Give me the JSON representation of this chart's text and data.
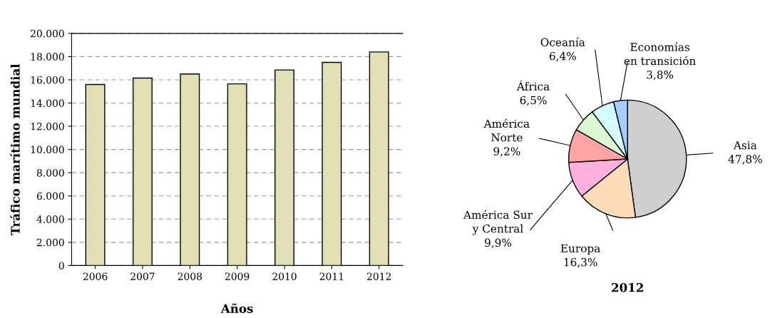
{
  "chart_data": [
    {
      "type": "bar",
      "xlabel": "Años",
      "ylabel": "Tráfico marítimo mundial",
      "categories": [
        "2006",
        "2007",
        "2008",
        "2009",
        "2010",
        "2011",
        "2012"
      ],
      "values": [
        15600,
        16150,
        16500,
        15650,
        16850,
        17500,
        18400
      ],
      "color": "#e0e0b4",
      "ylim": [
        0,
        20000
      ],
      "yticks": [
        0,
        {
          "value": 2000,
          "label": "2.000"
        },
        {
          "value": 4000,
          "label": "4.000"
        },
        {
          "value": 6000,
          "label": "6.000"
        },
        {
          "value": 8000,
          "label": "8.000"
        },
        {
          "value": 10000,
          "label": "10.000"
        },
        {
          "value": 12000,
          "label": "12.000"
        },
        {
          "value": 14000,
          "label": "14.000"
        },
        {
          "value": 16000,
          "label": "16.000"
        },
        {
          "value": 18000,
          "label": "18.000"
        },
        {
          "value": 20000,
          "label": "20.000"
        }
      ],
      "grid": "y",
      "legend": false
    },
    {
      "type": "pie",
      "title": "2012",
      "categories": [
        "Asia",
        "Europa",
        "América Sur\ny Central",
        "América\nNorte",
        "África",
        "Oceanía",
        "Economías\nen transición"
      ],
      "values": [
        47.8,
        16.3,
        9.9,
        9.2,
        6.5,
        6.4,
        3.8
      ],
      "value_labels": [
        "47,8%",
        "16,3%",
        "9,9%",
        "9,2%",
        "6,5%",
        "6,4%",
        "3,8%"
      ],
      "colors": [
        "#cfcfcf",
        "#fddcb8",
        "#ffb0dc",
        "#ffa4a4",
        "#daf8d2",
        "#d4fcfc",
        "#a4ceff"
      ],
      "legend": false
    }
  ]
}
